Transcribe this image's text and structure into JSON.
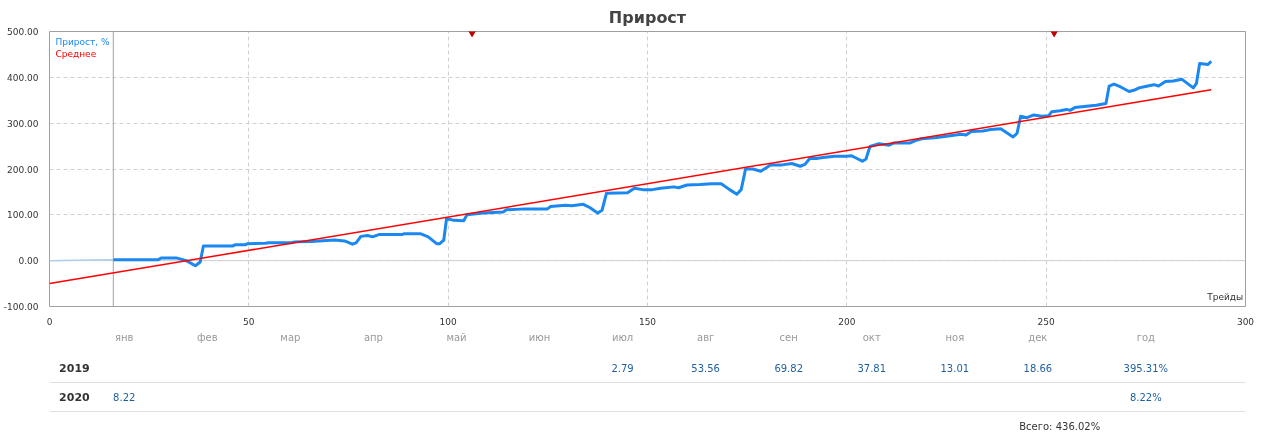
{
  "chart_data": [
    {
      "type": "line",
      "title": "Прирост",
      "xlabel": "Трейды",
      "xlim": [
        0,
        300
      ],
      "xticks": [
        0,
        50,
        100,
        150,
        200,
        250,
        300
      ],
      "ylim": [
        -100,
        500
      ],
      "yticks": [
        {
          "value": -100,
          "label": "-100.00"
        },
        {
          "value": 0,
          "label": "0.00"
        },
        {
          "value": 100,
          "label": "100.00"
        },
        {
          "value": 200,
          "label": "200.00"
        },
        {
          "value": 300,
          "label": "300.00"
        },
        {
          "value": 400,
          "label": "400.00"
        },
        {
          "value": 500,
          "label": "500.00"
        }
      ],
      "grid": true,
      "legend": "top left",
      "line_style": "solid",
      "ref_lines": [
        {
          "axis": "x",
          "value": 16,
          "label": null,
          "color": "#a0a0a0",
          "line_style": "solid"
        },
        {
          "axis": "y",
          "value": 0,
          "label": null,
          "color": "#d0d0d0",
          "line_style": "solid"
        }
      ],
      "series": [
        {
          "color": "#b0cfee",
          "x": [
            0,
            13,
            16
          ],
          "values": [
            0,
            2,
            2
          ]
        },
        {
          "name": "Прирост, %",
          "color": "#1a88f0",
          "x": [
            16,
            27.3,
            28,
            31.8,
            34.3,
            36.6,
            37.8,
            38.6,
            45.9,
            46.7,
            49.2,
            49.6,
            54.1,
            55,
            60.7,
            61.5,
            65.7,
            71.5,
            74,
            76,
            76.9,
            78.1,
            79.8,
            81,
            82.6,
            88.4,
            89,
            93,
            95,
            97.1,
            97.9,
            98.9,
            99.6,
            101.4,
            103.9,
            104.7,
            108.8,
            113.8,
            114.6,
            119.5,
            124.9,
            125.7,
            129.4,
            131,
            133.9,
            135.5,
            137.5,
            138.6,
            139.7,
            145,
            146.7,
            148.8,
            151.2,
            153.3,
            156.6,
            157.8,
            159.9,
            163.2,
            166.1,
            168.5,
            170.6,
            172.4,
            173.5,
            174.6,
            176.4,
            178.4,
            179.7,
            180.9,
            183.8,
            186.2,
            188.3,
            189.5,
            190.7,
            192.3,
            194,
            196.9,
            200,
            201.1,
            202.3,
            203.9,
            204.8,
            205.8,
            208.1,
            210.6,
            211.8,
            215.9,
            217.2,
            218.8,
            222.1,
            225.4,
            228.7,
            229.9,
            231.2,
            234.1,
            236.1,
            238.6,
            240.3,
            241.7,
            242.7,
            243.6,
            245.2,
            246.9,
            248.9,
            250.6,
            251.4,
            253.5,
            255.1,
            256,
            257.2,
            260.1,
            262.6,
            265,
            265.8,
            267,
            268.7,
            270.8,
            272.4,
            273.3,
            274.9,
            277,
            278.2,
            279.9,
            281.9,
            284,
            286.9,
            287.7,
            288.5,
            290.6,
            291.4
          ],
          "values": [
            2,
            2,
            6,
            6,
            0,
            -11,
            -3,
            32,
            32,
            35,
            35,
            37,
            38,
            39,
            39,
            41,
            42,
            45,
            43,
            36,
            39,
            53,
            55,
            52,
            57,
            57,
            59,
            59,
            52,
            37,
            37,
            45,
            92,
            88,
            87,
            100,
            104,
            106,
            111,
            113,
            113,
            118,
            121,
            120,
            123,
            116,
            104,
            110,
            147,
            148,
            158,
            155,
            155,
            158,
            161,
            159,
            165,
            166,
            168,
            168,
            155,
            145,
            155,
            200,
            200,
            195,
            202,
            209,
            209,
            212,
            206,
            210,
            223,
            223,
            225,
            228,
            228,
            229,
            224,
            217,
            222,
            249,
            255,
            252,
            257,
            257,
            262,
            266,
            268,
            272,
            276,
            274,
            282,
            283,
            286,
            288,
            278,
            270,
            278,
            315,
            312,
            318,
            315,
            316,
            325,
            327,
            330,
            328,
            334,
            337,
            339,
            343,
            381,
            385,
            379,
            369,
            373,
            377,
            380,
            384,
            381,
            391,
            392,
            396,
            377,
            387,
            430,
            428,
            435
          ]
        },
        {
          "name": "Среднее",
          "color": "#ff0000",
          "x": [
            0,
            291.4
          ],
          "values": [
            -50,
            373
          ]
        },
        {
          "type": "scatter",
          "marker": "triangle",
          "color": "#c00000",
          "x": [
            106,
            252
          ],
          "values": [
            500,
            500
          ]
        }
      ]
    },
    {
      "type": "heatmap",
      "categories": [
        "янв",
        "фев",
        "мар",
        "апр",
        "май",
        "июн",
        "июл",
        "авг",
        "сен",
        "окт",
        "ноя",
        "дек",
        "год"
      ],
      "y_categories": [
        "2019",
        "2020"
      ],
      "cells": [
        [
          null,
          null,
          null,
          null,
          null,
          null,
          null,
          null,
          null,
          null,
          null,
          null,
          null
        ],
        [
          null,
          null,
          null,
          null,
          null,
          null,
          null,
          null,
          null,
          null,
          null,
          null,
          null
        ]
      ],
      "cell_labels": [
        [
          null,
          null,
          null,
          null,
          null,
          null,
          "2.79",
          "53.56",
          "69.82",
          "37.81",
          "13.01",
          "18.66",
          "395.31%"
        ],
        [
          "8.22",
          null,
          null,
          null,
          null,
          null,
          null,
          null,
          null,
          null,
          null,
          null,
          "8.22%"
        ]
      ],
      "annotations": [
        "Всего: 436.02%"
      ]
    }
  ]
}
